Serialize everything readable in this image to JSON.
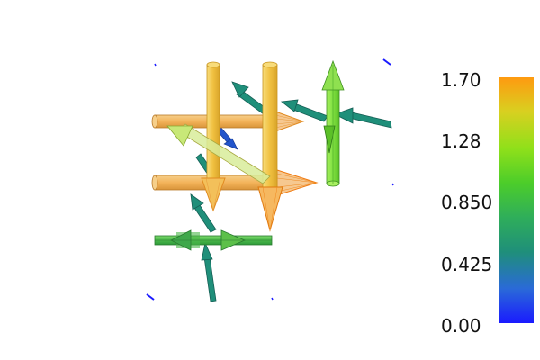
{
  "colorbar": {
    "ticks": [
      "1.70",
      "1.28",
      "0.850",
      "0.425",
      "0.00"
    ],
    "range": [
      0.0,
      1.7
    ],
    "colormap": [
      "#1a1aff",
      "#2a6ad8",
      "#1f8f7a",
      "#2fae5a",
      "#4ccd2a",
      "#8fe01a",
      "#d8d020",
      "#ff9a10"
    ]
  },
  "glyph_colors": {
    "tall_tubes": "#f0c040",
    "tall_tube_edges": "#c89520",
    "horizontal_tubes": "#f3b35a",
    "orange_heads": "#ff9a20",
    "green_tube": "#7fe040",
    "teal_arrow": "#1f8f7a",
    "blue_arrow": "#2255cc",
    "dark_blue_dash": "#1a1aff"
  }
}
